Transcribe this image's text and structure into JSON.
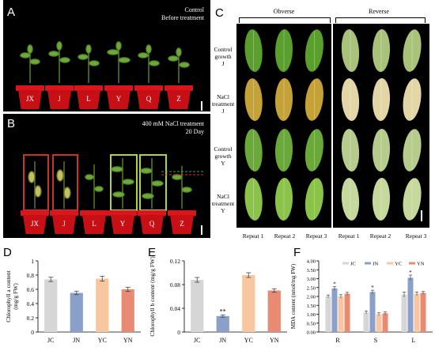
{
  "panels": {
    "a": {
      "letter": "A",
      "line1": "Control",
      "line2": "Before treatment",
      "pots": [
        "JX",
        "J",
        "L",
        "Y",
        "Q",
        "Z"
      ]
    },
    "b": {
      "letter": "B",
      "line1": "400 mM NaCl treatment",
      "line2": "20 Day",
      "pots": [
        "JX",
        "J",
        "L",
        "Y",
        "Q",
        "Z"
      ]
    },
    "c": {
      "letter": "C",
      "obverse": "Obverse",
      "reverse": "Reverse",
      "rows": [
        {
          "l1": "Control",
          "l2": "growth",
          "l3": "J"
        },
        {
          "l1": "NaCl",
          "l2": "treatment",
          "l3": "J"
        },
        {
          "l1": "Control",
          "l2": "growth",
          "l3": "Y"
        },
        {
          "l1": "NaCl",
          "l2": "treatment",
          "l3": "Y"
        }
      ],
      "cols": [
        "Repeat 1",
        "Repeat 2",
        "Repeat 3",
        "Repeat 1",
        "Repeat 2",
        "Repeat 3"
      ]
    },
    "d": {
      "letter": "D"
    },
    "e": {
      "letter": "E"
    },
    "f": {
      "letter": "F"
    }
  },
  "chart_data": [
    {
      "type": "bar",
      "categories": [
        "JC",
        "JN",
        "YC",
        "YN"
      ],
      "values": [
        0.74,
        0.55,
        0.75,
        0.6
      ],
      "errors": [
        0.03,
        0.025,
        0.035,
        0.03
      ],
      "colors": [
        "#d6d6d6",
        "#8aa0c8",
        "#f8c7a0",
        "#e98a73"
      ],
      "ylabel_l1": "Chlorophyll a content",
      "ylabel_l2": "(mg/g FW)",
      "yticks": [
        "0",
        "0.2",
        "0.4",
        "0.6",
        "0.8",
        "1"
      ],
      "ylim": [
        0,
        1
      ]
    },
    {
      "type": "bar",
      "categories": [
        "JC",
        "JN",
        "YC",
        "YN"
      ],
      "values": [
        0.088,
        0.027,
        0.096,
        0.07
      ],
      "errors": [
        0.004,
        0.002,
        0.004,
        0.003
      ],
      "colors": [
        "#d6d6d6",
        "#8aa0c8",
        "#f8c7a0",
        "#e98a73"
      ],
      "annotations": [
        "",
        "**",
        "",
        ""
      ],
      "ylabel": "Chlorophyll b content (mg/g FW)",
      "yticks": [
        "0",
        "0.04",
        "0.08",
        "0.12"
      ],
      "ylim": [
        0,
        0.12
      ]
    },
    {
      "type": "bar",
      "categories": [
        "R",
        "S",
        "L"
      ],
      "legend": [
        "JC",
        "JN",
        "YC",
        "YN"
      ],
      "colors": [
        "#d6d6d6",
        "#8aa0c8",
        "#f8c7a0",
        "#e98a73"
      ],
      "series": [
        {
          "name": "JC",
          "values": [
            2.0,
            1.1,
            2.1
          ],
          "errors": [
            0.08,
            0.08,
            0.15
          ]
        },
        {
          "name": "JN",
          "values": [
            2.45,
            2.25,
            3.05
          ],
          "errors": [
            0.1,
            0.1,
            0.15
          ]
        },
        {
          "name": "YC",
          "values": [
            2.0,
            1.0,
            2.15
          ],
          "errors": [
            0.1,
            0.08,
            0.1
          ]
        },
        {
          "name": "YN",
          "values": [
            2.15,
            1.05,
            2.2
          ],
          "errors": [
            0.08,
            0.08,
            0.08
          ]
        }
      ],
      "annotations": [
        "*",
        "*",
        "*"
      ],
      "ylabel": "MDA content (nmol/mg FW)",
      "yticks": [
        "0.00",
        "0.50",
        "1.00",
        "1.50",
        "2.00",
        "2.50",
        "3.00",
        "3.50",
        "4.00"
      ],
      "ylim": [
        0,
        4
      ]
    }
  ]
}
